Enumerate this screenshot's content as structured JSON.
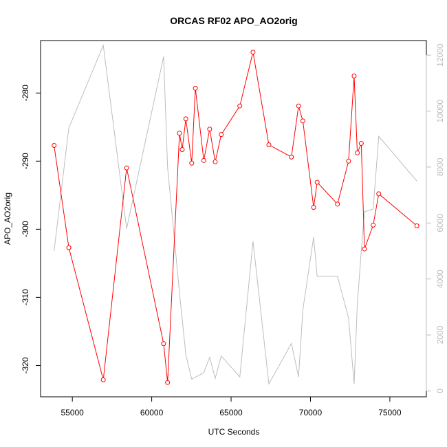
{
  "chart_data": {
    "type": "line",
    "title": "ORCAS RF02 APO_AO2orig",
    "xlabel": "UTC Seconds",
    "ylabel": "APO_AO2orig",
    "xlim": [
      53000,
      77300
    ],
    "ylim": [
      -324.6,
      -272.3
    ],
    "y2lim": [
      -210,
      12520
    ],
    "x_ticks": [
      55000,
      60000,
      65000,
      70000,
      75000
    ],
    "y_ticks": [
      -320,
      -310,
      -300,
      -290,
      -280
    ],
    "y2_ticks": [
      0,
      2000,
      4000,
      6000,
      8000,
      10000,
      12000
    ],
    "grid": false,
    "legend": "none",
    "series": [
      {
        "color": "#ff0000",
        "marker": "circle",
        "x": [
          53850,
          54780,
          56950,
          58420,
          60750,
          61000,
          61750,
          61920,
          62150,
          62520,
          62750,
          63280,
          63650,
          64000,
          64380,
          65550,
          66380,
          67380,
          68800,
          69250,
          69520,
          70200,
          70420,
          71700,
          72400,
          72750,
          72950,
          73200,
          73400,
          73950,
          74300,
          76700
        ],
        "y": [
          -287.7,
          -302.7,
          -322.1,
          -291.0,
          -316.8,
          -322.5,
          -285.9,
          -288.3,
          -283.8,
          -290.3,
          -279.3,
          -289.9,
          -285.3,
          -290.1,
          -286.1,
          -281.9,
          -274.0,
          -287.6,
          -289.4,
          -281.9,
          -284.1,
          -296.8,
          -293.1,
          -296.3,
          -290.0,
          -277.5,
          -288.8,
          -287.4,
          -302.9,
          -299.4,
          -294.8,
          -299.5
        ]
      },
      {
        "color": "#bdbdbd",
        "axis": "right",
        "x": [
          53850,
          54780,
          56950,
          58420,
          60750,
          61000,
          61750,
          62150,
          62520,
          63280,
          63650,
          64000,
          64380,
          65550,
          66380,
          67380,
          68800,
          69250,
          69520,
          70200,
          70420,
          71700,
          72400,
          72750,
          72950,
          73200,
          73400,
          73950,
          74300,
          76700
        ],
        "y": [
          5000,
          9400,
          12350,
          5800,
          11950,
          8000,
          3500,
          1300,
          420,
          650,
          1200,
          450,
          1250,
          500,
          5350,
          250,
          1700,
          500,
          2900,
          5500,
          4100,
          4100,
          2600,
          250,
          3100,
          5000,
          6400,
          6500,
          9100,
          7500
        ]
      }
    ]
  }
}
